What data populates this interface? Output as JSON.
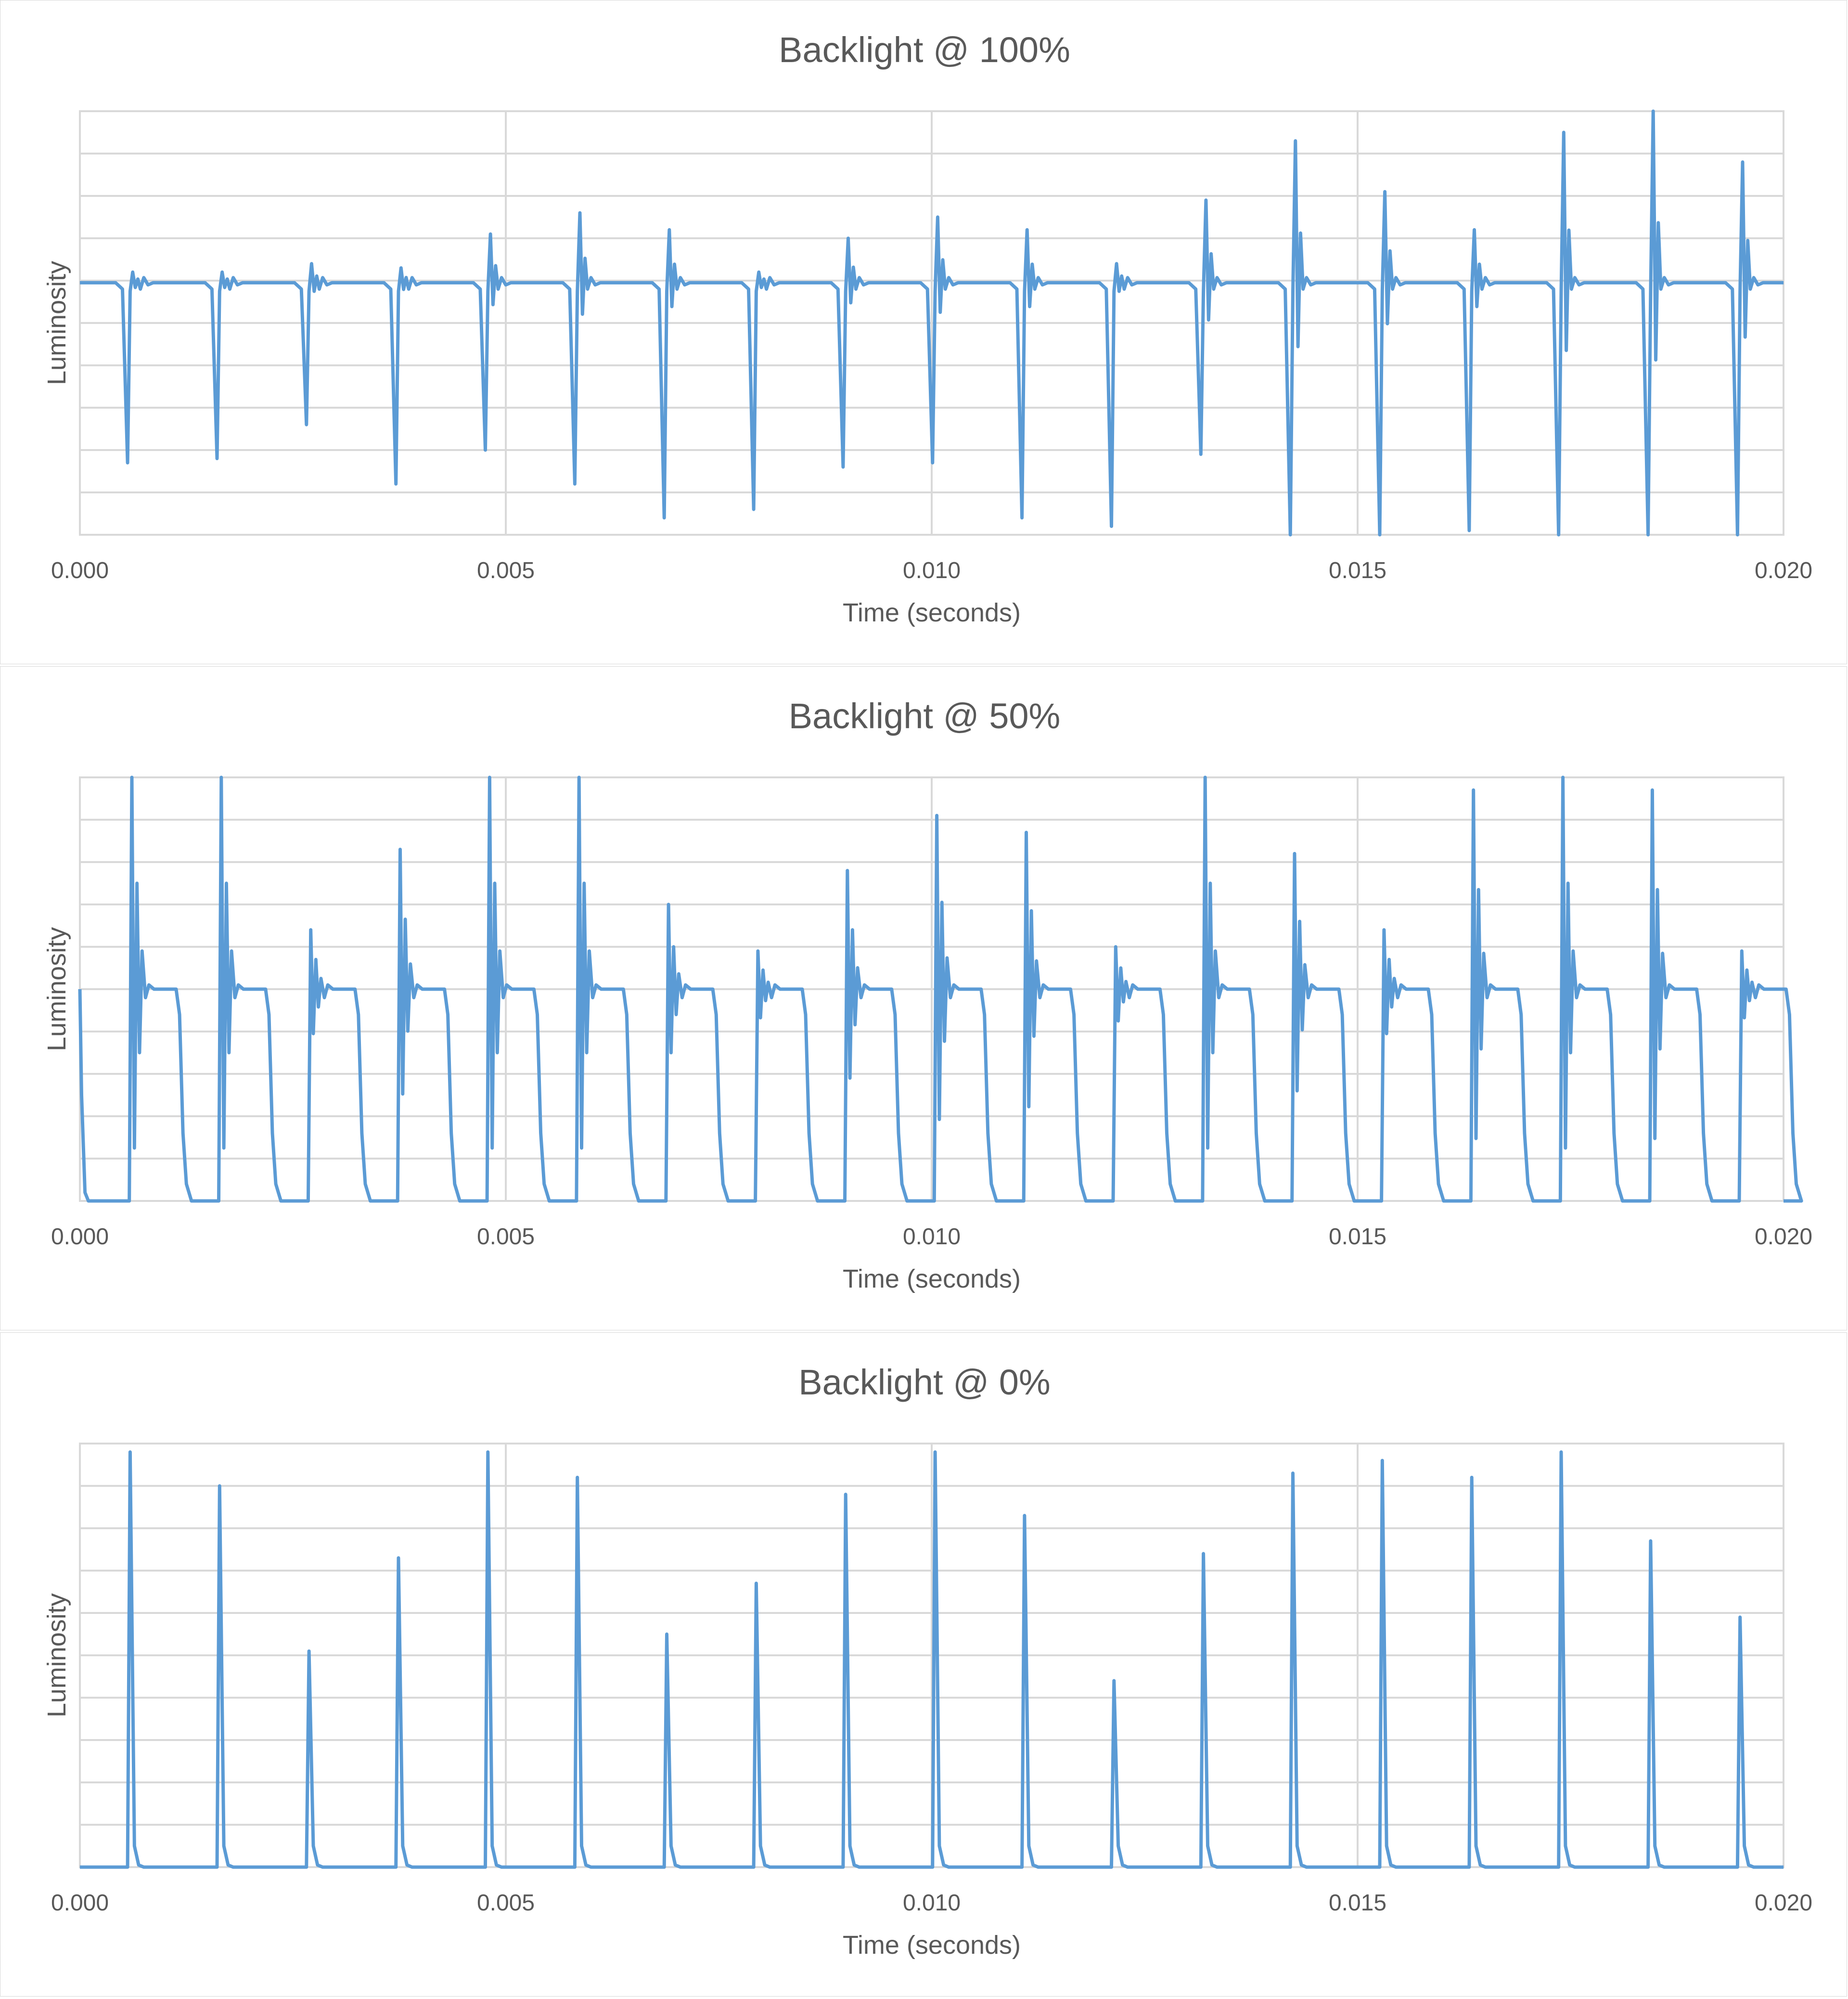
{
  "colors": {
    "series": "#5b9bd5",
    "grid": "#d9d9d9",
    "text": "#595959",
    "border": "#d9d9d9"
  },
  "chart_data": [
    {
      "type": "line",
      "title": "Backlight @ 100%",
      "xlabel": "Time (seconds)",
      "ylabel": "Luminosity",
      "xlim": [
        0,
        0.02
      ],
      "ylim": [
        0,
        10
      ],
      "x_ticks": [
        "0.000",
        "0.005",
        "0.010",
        "0.015",
        "0.020"
      ],
      "grid": "on",
      "mode": "dips",
      "baseline": 5.95,
      "event_times": [
        0.00056,
        0.00161,
        0.00266,
        0.00371,
        0.00476,
        0.00581,
        0.00686,
        0.00791,
        0.00896,
        0.01001,
        0.01106,
        0.01211,
        0.01316,
        0.01421,
        0.01526,
        0.01631,
        0.01736,
        0.01841,
        0.01946
      ],
      "series": [
        {
          "name": "",
          "dip_min": [
            1.7,
            1.8,
            2.6,
            1.2,
            2.0,
            1.2,
            0.4,
            0.6,
            1.6,
            1.7,
            0.4,
            0.2,
            1.9,
            0.0,
            0.0,
            0.1,
            0.0,
            0.0,
            0.0
          ],
          "peak_max": [
            6.2,
            6.2,
            6.4,
            6.3,
            7.1,
            7.6,
            7.2,
            6.2,
            7.0,
            7.5,
            7.2,
            6.4,
            7.9,
            9.3,
            8.1,
            7.2,
            9.5,
            10.0,
            8.8
          ]
        }
      ]
    },
    {
      "type": "line",
      "title": "Backlight @ 50%",
      "xlabel": "Time (seconds)",
      "ylabel": "Luminosity",
      "xlim": [
        0,
        0.02
      ],
      "ylim": [
        0,
        10
      ],
      "x_ticks": [
        "0.000",
        "0.005",
        "0.010",
        "0.015",
        "0.020"
      ],
      "grid": "on",
      "mode": "pulses",
      "plateau": 5.0,
      "pulse_width": 0.00052,
      "event_times": [
        0.00061,
        0.00166,
        0.00271,
        0.00376,
        0.00481,
        0.00586,
        0.00691,
        0.00796,
        0.00901,
        0.01006,
        0.01111,
        0.01216,
        0.01321,
        0.01426,
        0.01531,
        0.01636,
        0.01741,
        0.01846,
        0.01951
      ],
      "series": [
        {
          "name": "",
          "peak_max": [
            10.0,
            10.0,
            6.4,
            8.3,
            10.0,
            10.0,
            7.0,
            5.9,
            7.8,
            9.1,
            8.7,
            6.0,
            10.0,
            8.2,
            6.4,
            9.7,
            10.0,
            9.7,
            5.9
          ]
        }
      ]
    },
    {
      "type": "line",
      "title": "Backlight @ 0%",
      "xlabel": "Time (seconds)",
      "ylabel": "Luminosity",
      "xlim": [
        0,
        0.02
      ],
      "ylim": [
        0,
        10
      ],
      "x_ticks": [
        "0.000",
        "0.005",
        "0.010",
        "0.015",
        "0.020"
      ],
      "grid": "on",
      "mode": "spikes",
      "event_times": [
        0.00059,
        0.00164,
        0.00269,
        0.00374,
        0.00479,
        0.00584,
        0.00689,
        0.00794,
        0.00899,
        0.01004,
        0.01109,
        0.01214,
        0.01319,
        0.01424,
        0.01529,
        0.01634,
        0.01739,
        0.01844,
        0.01949
      ],
      "series": [
        {
          "name": "",
          "peak_max": [
            9.8,
            9.0,
            5.1,
            7.3,
            9.8,
            9.2,
            5.5,
            6.7,
            8.8,
            9.8,
            8.3,
            4.4,
            7.4,
            9.3,
            9.6,
            9.2,
            9.8,
            7.7,
            5.9
          ]
        }
      ]
    }
  ]
}
